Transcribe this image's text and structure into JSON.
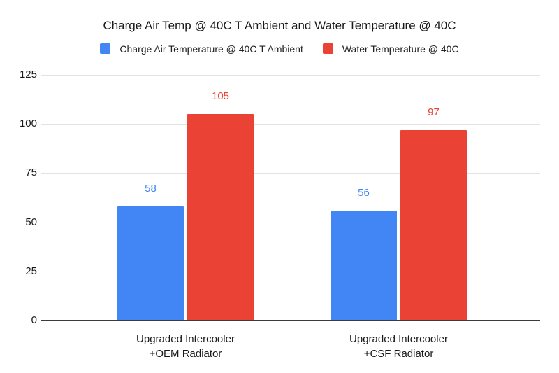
{
  "chart_data": {
    "type": "bar",
    "title": "Charge Air Temp @ 40C T Ambient and Water Temperature @ 40C",
    "categories": [
      {
        "lines": [
          "Upgraded Intercooler",
          "+OEM Radiator"
        ]
      },
      {
        "lines": [
          "Upgraded Intercooler",
          "+CSF Radiator"
        ]
      }
    ],
    "series": [
      {
        "name": "Charge Air Temperature @ 40C T Ambient",
        "color": "#4285F4",
        "values": [
          58,
          56
        ]
      },
      {
        "name": "Water Temperature @ 40C",
        "color": "#EA4335",
        "values": [
          105,
          97
        ]
      }
    ],
    "yticks": [
      0,
      25,
      50,
      75,
      100,
      125
    ],
    "ylim": [
      0,
      125
    ],
    "grid": true,
    "legend_position": "top",
    "value_labels_shown": true,
    "colors": {
      "gridline": "#e3e3e3",
      "axis_line": "#3b3b3b",
      "text": "#1a1a1a"
    }
  }
}
